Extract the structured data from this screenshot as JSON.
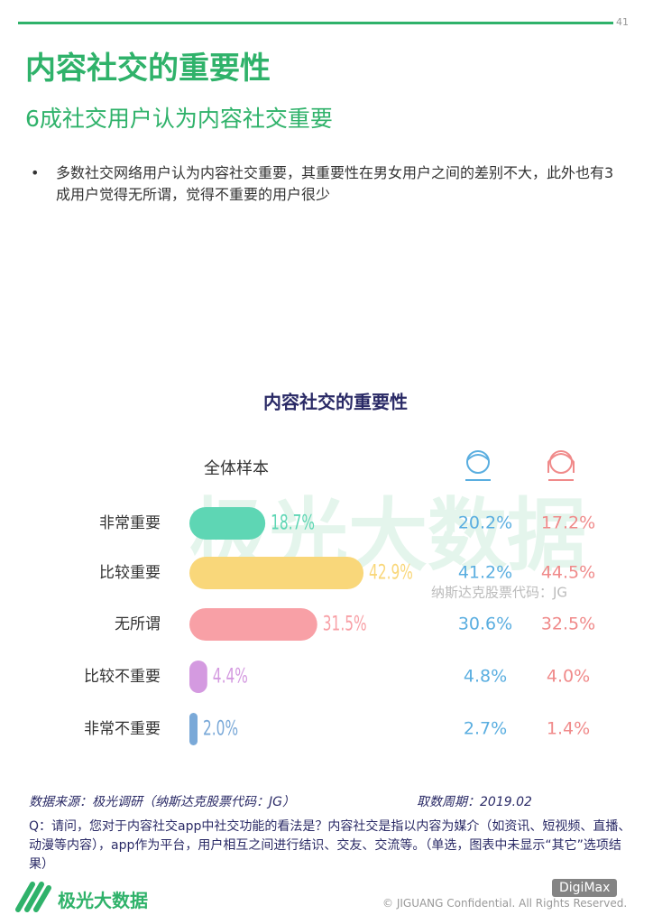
{
  "page_number": "41",
  "title": "内容社交的重要性",
  "subtitle": "6成社交用户认为内容社交重要",
  "bullet": "多数社交网络用户认为内容社交重要，其重要性在男女用户之间的差别不大，此外也有3成用户觉得无所谓，觉得不重要的用户很少",
  "chart_data": {
    "type": "bar",
    "orientation": "horizontal",
    "title": "内容社交的重要性",
    "categories": [
      "非常重要",
      "比较重要",
      "无所谓",
      "比较不重要",
      "非常不重要"
    ],
    "series": [
      {
        "name": "全体样本",
        "colors": [
          "#5ed6b4",
          "#f9d77a",
          "#f8a0a6",
          "#d49ae0",
          "#7aa9d8"
        ],
        "values": [
          18.7,
          42.9,
          31.5,
          4.4,
          2.0
        ],
        "value_labels": [
          "18.7%",
          "42.9%",
          "31.5%",
          "4.4%",
          "2.0%"
        ]
      },
      {
        "color": "#5aaee0",
        "values": [
          20.2,
          41.2,
          30.6,
          4.8,
          2.7
        ],
        "value_labels": [
          "20.2%",
          "41.2%",
          "30.6%",
          "4.8%",
          "2.7%"
        ]
      },
      {
        "color": "#f08a8a",
        "values": [
          17.2,
          44.5,
          32.5,
          4.0,
          1.4
        ],
        "value_labels": [
          "17.2%",
          "44.5%",
          "32.5%",
          "4.0%",
          "1.4%"
        ]
      }
    ]
  },
  "watermark": "极光大数据",
  "stock_code": "纳斯达克股票代码：JG",
  "source": "数据来源：极光调研（纳斯达克股票代码：JG）",
  "period": "取数周期：2019.02",
  "question": "Q：请问，您对于内容社交app中社交功能的看法是？内容社交是指以内容为媒介（如资讯、短视频、直播、动漫等内容），app作为平台，用户相互之间进行结识、交友、交流等。（单选，图表中未显示“其它”选项结果）",
  "logo_text": "极光大数据",
  "copyright": "© JIGUANG Confidential. All Rights Reserved.",
  "badge": "DigiMax"
}
